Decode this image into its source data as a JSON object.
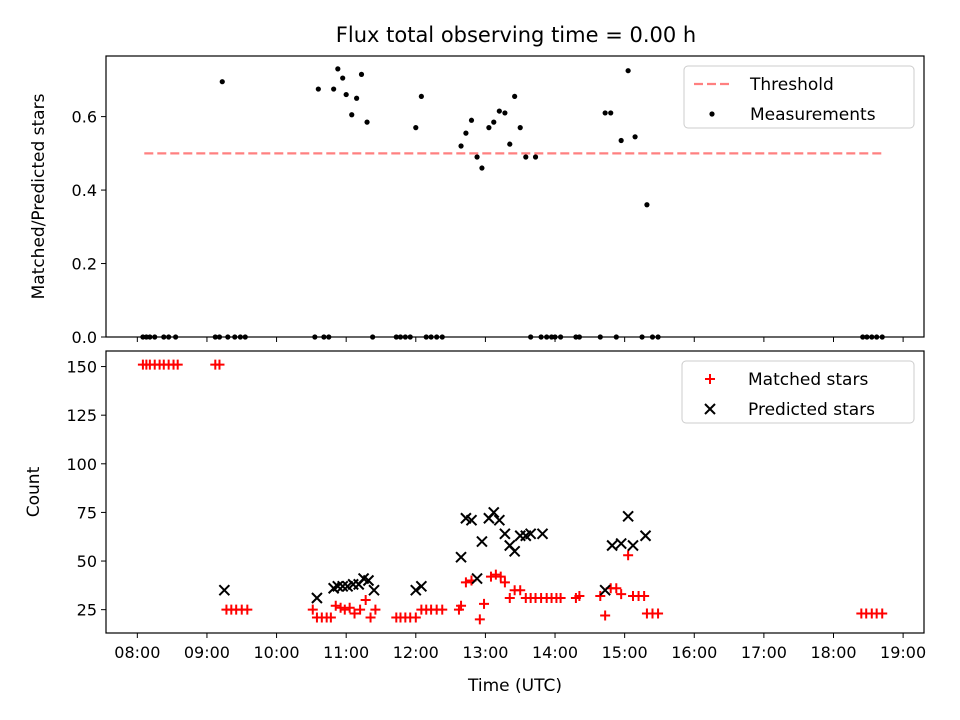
{
  "figure": {
    "title": "Flux total observing time = 0.00 h"
  },
  "chart_data": [
    {
      "type": "scatter",
      "ylabel": "Matched/Predicted stars",
      "xlim": [
        7.55,
        19.3
      ],
      "ylim": [
        0,
        0.765
      ],
      "x_ticks": [
        8,
        9,
        10,
        11,
        12,
        13,
        14,
        15,
        16,
        17,
        18,
        19
      ],
      "y_ticks": [
        0.0,
        0.2,
        0.4,
        0.6
      ],
      "y_tick_labels": [
        "0.0",
        "0.2",
        "0.4",
        "0.6"
      ],
      "legend_position": "top-right",
      "series": [
        {
          "name": "Threshold",
          "kind": "line",
          "color": "#ff8080",
          "style": "dashed",
          "x": [
            8.1,
            18.7
          ],
          "y": [
            0.5,
            0.5
          ]
        },
        {
          "name": "Measurements",
          "kind": "scatter",
          "color": "#000000",
          "marker": "dot",
          "x": [
            8.08,
            8.13,
            8.18,
            8.25,
            8.38,
            8.45,
            8.55,
            9.12,
            9.18,
            9.22,
            9.3,
            9.4,
            9.48,
            9.55,
            10.55,
            10.6,
            10.68,
            10.75,
            10.82,
            10.88,
            10.95,
            11.0,
            11.08,
            11.15,
            11.22,
            11.3,
            11.38,
            11.72,
            11.78,
            11.85,
            11.92,
            12.0,
            12.08,
            12.15,
            12.22,
            12.3,
            12.38,
            12.65,
            12.72,
            12.8,
            12.88,
            12.95,
            13.05,
            13.12,
            13.2,
            13.28,
            13.35,
            13.42,
            13.5,
            13.58,
            13.65,
            13.72,
            13.8,
            13.88,
            13.95,
            14.0,
            14.08,
            14.3,
            14.35,
            14.65,
            14.72,
            14.8,
            14.88,
            14.95,
            15.05,
            15.15,
            15.25,
            15.32,
            15.4,
            15.48,
            18.42,
            18.48,
            18.55,
            18.62,
            18.7
          ],
          "y": [
            0,
            0,
            0,
            0,
            0,
            0,
            0,
            0,
            0,
            0.695,
            0,
            0,
            0,
            0,
            0,
            0.675,
            0,
            0,
            0.675,
            0.73,
            0.705,
            0.66,
            0.605,
            0.65,
            0.715,
            0.585,
            0,
            0,
            0,
            0,
            0,
            0.57,
            0.655,
            0,
            0,
            0,
            0,
            0.52,
            0.555,
            0.59,
            0.49,
            0.46,
            0.57,
            0.585,
            0.615,
            0.61,
            0.525,
            0.655,
            0.57,
            0.49,
            0,
            0.49,
            0,
            0,
            0,
            0,
            0,
            0,
            0,
            0,
            0.61,
            0.61,
            0,
            0.535,
            0.725,
            0.545,
            0,
            0.36,
            0,
            0,
            0,
            0,
            0,
            0,
            0
          ]
        }
      ]
    },
    {
      "type": "scatter",
      "xlabel": "Time (UTC)",
      "ylabel": "Count",
      "xlim": [
        7.55,
        19.3
      ],
      "ylim": [
        13,
        158
      ],
      "x_ticks": [
        8,
        9,
        10,
        11,
        12,
        13,
        14,
        15,
        16,
        17,
        18,
        19
      ],
      "x_tick_labels": [
        "08:00",
        "09:00",
        "10:00",
        "11:00",
        "12:00",
        "13:00",
        "14:00",
        "15:00",
        "16:00",
        "17:00",
        "18:00",
        "19:00"
      ],
      "y_ticks": [
        25,
        50,
        75,
        100,
        125,
        150
      ],
      "y_tick_labels": [
        "25",
        "50",
        "75",
        "100",
        "125",
        "150"
      ],
      "legend_position": "top-right",
      "series": [
        {
          "name": "Matched stars",
          "kind": "scatter",
          "color": "#ff0000",
          "marker": "plus",
          "x": [
            8.08,
            8.13,
            8.18,
            8.25,
            8.32,
            8.38,
            8.45,
            8.52,
            8.58,
            9.12,
            9.18,
            9.28,
            9.35,
            9.42,
            9.5,
            9.58,
            10.52,
            10.58,
            10.65,
            10.72,
            10.78,
            10.85,
            10.92,
            10.98,
            11.05,
            11.12,
            11.2,
            11.28,
            11.35,
            11.42,
            11.72,
            11.78,
            11.85,
            11.92,
            12.0,
            12.08,
            12.15,
            12.22,
            12.3,
            12.38,
            12.62,
            12.65,
            12.72,
            12.8,
            12.92,
            12.98,
            13.08,
            13.15,
            13.22,
            13.28,
            13.35,
            13.42,
            13.5,
            13.58,
            13.65,
            13.72,
            13.8,
            13.88,
            13.95,
            14.02,
            14.08,
            14.3,
            14.35,
            14.65,
            14.72,
            14.8,
            14.88,
            14.95,
            15.05,
            15.12,
            15.2,
            15.28,
            15.32,
            15.4,
            15.48,
            18.4,
            18.47,
            18.55,
            18.62,
            18.7
          ],
          "y": [
            151,
            151,
            151,
            151,
            151,
            151,
            151,
            151,
            151,
            151,
            151,
            25,
            25,
            25,
            25,
            25,
            25,
            21,
            21,
            21,
            21,
            27,
            26,
            25,
            26,
            23,
            25,
            30,
            21,
            25,
            21,
            21,
            21,
            21,
            21,
            25,
            25,
            25,
            25,
            25,
            25,
            27,
            39,
            40,
            20,
            28,
            42,
            43,
            42,
            39,
            31,
            35,
            35,
            31,
            31,
            31,
            31,
            31,
            31,
            31,
            31,
            31,
            32,
            32,
            22,
            36,
            36,
            33,
            53,
            32,
            32,
            32,
            23,
            23,
            23,
            23,
            23,
            23,
            23,
            23
          ]
        },
        {
          "name": "Predicted stars",
          "kind": "scatter",
          "color": "#000000",
          "marker": "x",
          "x": [
            9.25,
            10.58,
            10.82,
            10.88,
            10.95,
            11.02,
            11.1,
            11.18,
            11.25,
            11.32,
            11.4,
            12.0,
            12.08,
            12.65,
            12.72,
            12.8,
            12.88,
            12.95,
            13.05,
            13.12,
            13.2,
            13.28,
            13.35,
            13.42,
            13.5,
            13.58,
            13.65,
            13.82,
            14.72,
            14.82,
            14.95,
            15.05,
            15.12,
            15.3
          ],
          "y": [
            35,
            31,
            36,
            37,
            37,
            37,
            38,
            38,
            41,
            40,
            35,
            35,
            37,
            52,
            72,
            71,
            41,
            60,
            72,
            75,
            71,
            64,
            58,
            55,
            63,
            63,
            64,
            64,
            35,
            58,
            59,
            73,
            58,
            63
          ]
        }
      ]
    }
  ]
}
